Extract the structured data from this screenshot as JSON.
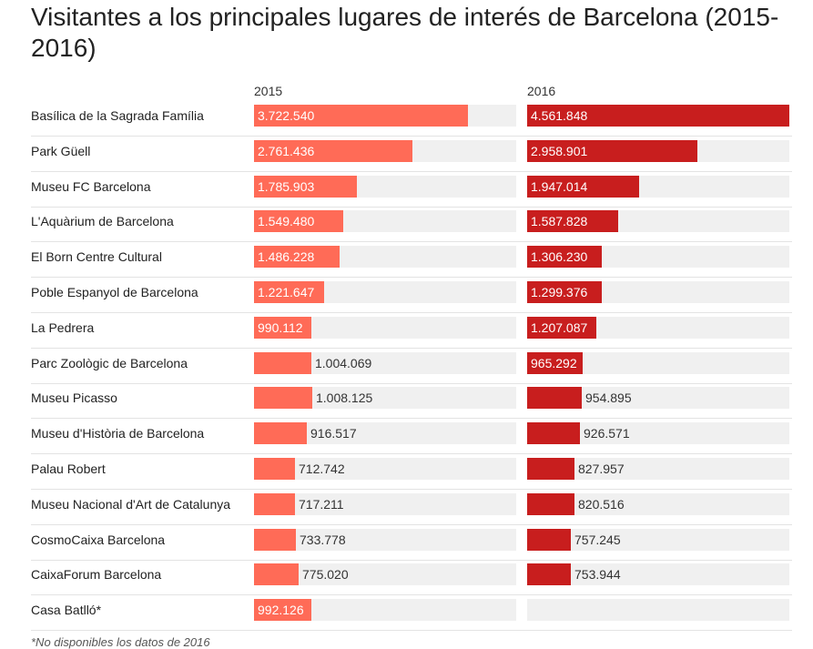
{
  "chart_data": {
    "type": "bar",
    "title": "Visitantes a los principales lugares de interés de Barcelona (2015-2016)",
    "categories": [
      "Basílica de la Sagrada Família",
      "Park Güell",
      "Museu FC Barcelona",
      "L'Aquàrium de Barcelona",
      "El Born Centre Cultural",
      "Poble Espanyol de Barcelona",
      "La Pedrera",
      "Parc Zoològic de Barcelona",
      "Museu Picasso",
      "Museu d'Història de Barcelona",
      "Palau Robert",
      "Museu Nacional d'Art de Catalunya",
      "CosmoCaixa Barcelona",
      "CaixaForum Barcelona",
      "Casa Batlló*"
    ],
    "series": [
      {
        "name": "2015",
        "color": "#ff6b57",
        "values": [
          3722540,
          2761436,
          1785903,
          1549480,
          1486228,
          1221647,
          990112,
          1004069,
          1008125,
          916517,
          712742,
          717211,
          733778,
          775020,
          992126
        ],
        "labels": [
          "3.722.540",
          "2.761.436",
          "1.785.903",
          "1.549.480",
          "1.486.228",
          "1.221.647",
          "990.112",
          "1.004.069",
          "1.008.125",
          "916.517",
          "712.742",
          "717.211",
          "733.778",
          "775.020",
          "992.126"
        ]
      },
      {
        "name": "2016",
        "color": "#c81e1e",
        "values": [
          4561848,
          2958901,
          1947014,
          1587828,
          1306230,
          1299376,
          1207087,
          965292,
          954895,
          926571,
          827957,
          820516,
          757245,
          753944,
          null
        ],
        "labels": [
          "4.561.848",
          "2.958.901",
          "1.947.014",
          "1.587.828",
          "1.306.230",
          "1.299.376",
          "1.207.087",
          "965.292",
          "954.895",
          "926.571",
          "827.957",
          "820.516",
          "757.245",
          "753.944",
          ""
        ]
      }
    ],
    "inside_label": [
      [
        true,
        true,
        true,
        true,
        true,
        true,
        true,
        false,
        false,
        false,
        false,
        false,
        false,
        false,
        true
      ],
      [
        true,
        true,
        true,
        true,
        true,
        true,
        true,
        true,
        false,
        false,
        false,
        false,
        false,
        false,
        false
      ]
    ],
    "footnote": "*No disponibles los datos de 2016"
  }
}
